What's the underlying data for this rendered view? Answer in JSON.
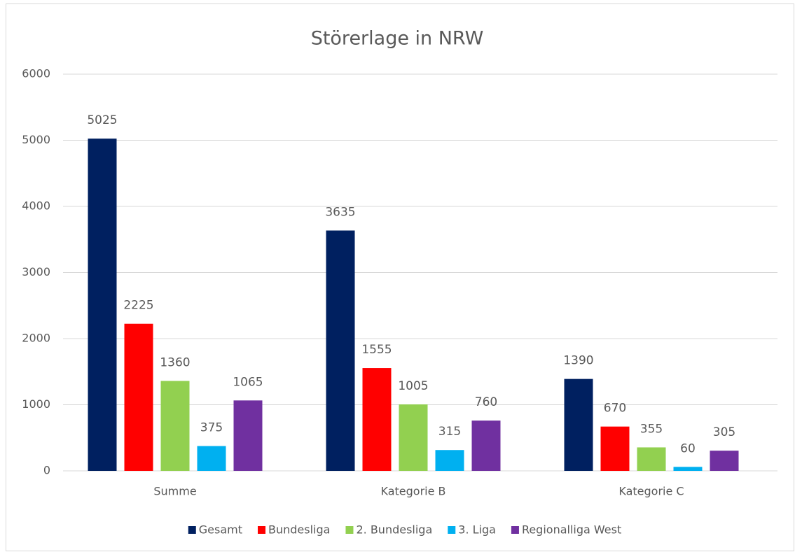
{
  "chart_data": {
    "type": "bar",
    "title": "Störerlage in NRW",
    "categories": [
      "Summe",
      "Kategorie B",
      "Kategorie C"
    ],
    "series": [
      {
        "name": "Gesamt",
        "color": "#002060",
        "values": [
          5025,
          3635,
          1390
        ]
      },
      {
        "name": "Bundesliga",
        "color": "#ff0000",
        "values": [
          2225,
          1555,
          670
        ]
      },
      {
        "name": "2. Bundesliga",
        "color": "#92d050",
        "values": [
          1360,
          1005,
          355
        ]
      },
      {
        "name": "3. Liga",
        "color": "#00b0f0",
        "values": [
          375,
          315,
          60
        ]
      },
      {
        "name": "Regionalliga West",
        "color": "#7030a0",
        "values": [
          1065,
          760,
          305
        ]
      }
    ],
    "ylim": [
      0,
      6000
    ],
    "yticks": [
      0,
      1000,
      2000,
      3000,
      4000,
      5000,
      6000
    ],
    "grid": true,
    "legend": "bottom"
  }
}
